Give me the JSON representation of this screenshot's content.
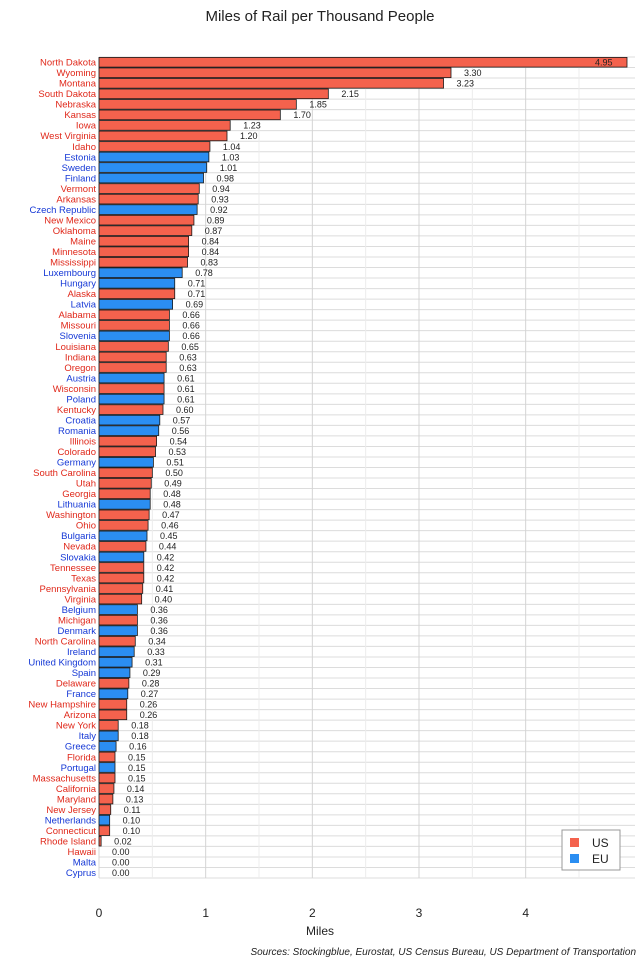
{
  "chart_data": {
    "type": "bar",
    "orientation": "horizontal",
    "title": "Miles of Rail per Thousand People",
    "xlabel": "Miles",
    "ylabel": "",
    "xlim": [
      0,
      4.95
    ],
    "xticks": [
      0,
      1,
      2,
      3,
      4
    ],
    "grid": true,
    "legend_position": "bottom-right",
    "source": "Sources: Stockingblue, Eurostat, US Census Bureau, US Department of Transportation",
    "colors": {
      "US": "#f4624d",
      "EU": "#2b8ef2"
    },
    "series": [
      {
        "name": "US"
      },
      {
        "name": "EU"
      }
    ],
    "categories": [
      "North Dakota",
      "Wyoming",
      "Montana",
      "South Dakota",
      "Nebraska",
      "Kansas",
      "Iowa",
      "West Virginia",
      "Idaho",
      "Estonia",
      "Sweden",
      "Finland",
      "Vermont",
      "Arkansas",
      "Czech Republic",
      "New Mexico",
      "Oklahoma",
      "Maine",
      "Minnesota",
      "Mississippi",
      "Luxembourg",
      "Hungary",
      "Alaska",
      "Latvia",
      "Alabama",
      "Missouri",
      "Slovenia",
      "Louisiana",
      "Indiana",
      "Oregon",
      "Austria",
      "Wisconsin",
      "Poland",
      "Kentucky",
      "Croatia",
      "Romania",
      "Illinois",
      "Colorado",
      "Germany",
      "South Carolina",
      "Utah",
      "Georgia",
      "Lithuania",
      "Washington",
      "Ohio",
      "Bulgaria",
      "Nevada",
      "Slovakia",
      "Tennessee",
      "Texas",
      "Pennsylvania",
      "Virginia",
      "Belgium",
      "Michigan",
      "Denmark",
      "North Carolina",
      "Ireland",
      "United Kingdom",
      "Spain",
      "Delaware",
      "France",
      "New Hampshire",
      "Arizona",
      "New York",
      "Italy",
      "Greece",
      "Florida",
      "Portugal",
      "Massachusetts",
      "California",
      "Maryland",
      "New Jersey",
      "Netherlands",
      "Connecticut",
      "Rhode Island",
      "Hawaii",
      "Malta",
      "Cyprus"
    ],
    "values": [
      4.95,
      3.3,
      3.23,
      2.15,
      1.85,
      1.7,
      1.23,
      1.2,
      1.04,
      1.03,
      1.01,
      0.98,
      0.94,
      0.93,
      0.92,
      0.89,
      0.87,
      0.84,
      0.84,
      0.83,
      0.78,
      0.71,
      0.71,
      0.69,
      0.66,
      0.66,
      0.66,
      0.65,
      0.63,
      0.63,
      0.61,
      0.61,
      0.61,
      0.6,
      0.57,
      0.56,
      0.54,
      0.53,
      0.51,
      0.5,
      0.49,
      0.48,
      0.48,
      0.47,
      0.46,
      0.45,
      0.44,
      0.42,
      0.42,
      0.42,
      0.41,
      0.4,
      0.36,
      0.36,
      0.36,
      0.34,
      0.33,
      0.31,
      0.29,
      0.28,
      0.27,
      0.26,
      0.26,
      0.18,
      0.18,
      0.16,
      0.15,
      0.15,
      0.15,
      0.14,
      0.13,
      0.11,
      0.1,
      0.1,
      0.02,
      0.0,
      0.0,
      0.0
    ],
    "value_labels": [
      "4.95",
      "3.30",
      "3.23",
      "2.15",
      "1.85",
      "1.70",
      "1.23",
      "1.20",
      "1.04",
      "1.03",
      "1.01",
      "0.98",
      "0.94",
      "0.93",
      "0.92",
      "0.89",
      "0.87",
      "0.84",
      "0.84",
      "0.83",
      "0.78",
      "0.71",
      "0.71",
      "0.69",
      "0.66",
      "0.66",
      "0.66",
      "0.65",
      "0.63",
      "0.63",
      "0.61",
      "0.61",
      "0.61",
      "0.60",
      "0.57",
      "0.56",
      "0.54",
      "0.53",
      "0.51",
      "0.50",
      "0.49",
      "0.48",
      "0.48",
      "0.47",
      "0.46",
      "0.45",
      "0.44",
      "0.42",
      "0.42",
      "0.42",
      "0.41",
      "0.40",
      "0.36",
      "0.36",
      "0.36",
      "0.34",
      "0.33",
      "0.31",
      "0.29",
      "0.28",
      "0.27",
      "0.26",
      "0.26",
      "0.18",
      "0.18",
      "0.16",
      "0.15",
      "0.15",
      "0.15",
      "0.14",
      "0.13",
      "0.11",
      "0.10",
      "0.10",
      "0.02",
      "0.00",
      "0.00",
      "0.00"
    ],
    "groups": [
      "US",
      "US",
      "US",
      "US",
      "US",
      "US",
      "US",
      "US",
      "US",
      "EU",
      "EU",
      "EU",
      "US",
      "US",
      "EU",
      "US",
      "US",
      "US",
      "US",
      "US",
      "EU",
      "EU",
      "US",
      "EU",
      "US",
      "US",
      "EU",
      "US",
      "US",
      "US",
      "EU",
      "US",
      "EU",
      "US",
      "EU",
      "EU",
      "US",
      "US",
      "EU",
      "US",
      "US",
      "US",
      "EU",
      "US",
      "US",
      "EU",
      "US",
      "EU",
      "US",
      "US",
      "US",
      "US",
      "EU",
      "US",
      "EU",
      "US",
      "EU",
      "EU",
      "EU",
      "US",
      "EU",
      "US",
      "US",
      "US",
      "EU",
      "EU",
      "US",
      "EU",
      "US",
      "US",
      "US",
      "US",
      "EU",
      "US",
      "US",
      "US",
      "EU",
      "EU"
    ]
  }
}
